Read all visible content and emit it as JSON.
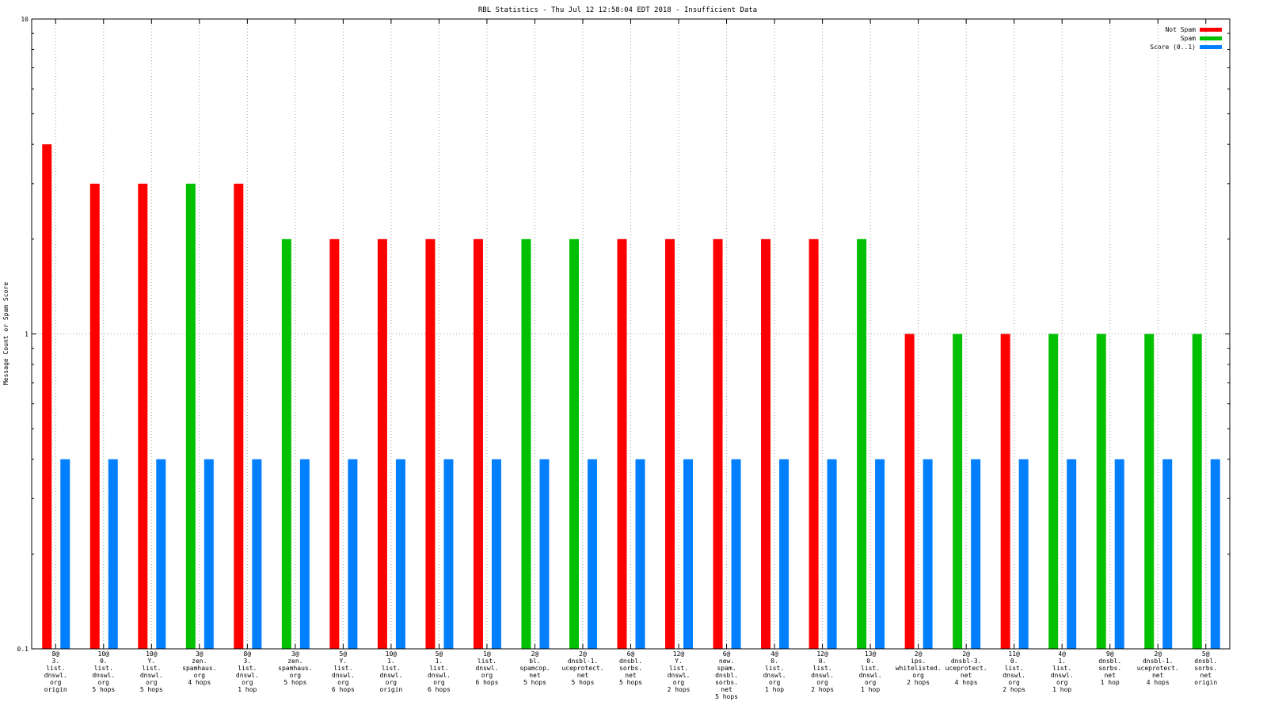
{
  "chart_data": {
    "type": "bar",
    "title": "RBL Statistics - Thu Jul 12 12:58:04 EDT 2018 - Insufficient Data",
    "xlabel": "",
    "ylabel": "Message Count or Spam Score",
    "yscale": "log",
    "ylim": [
      0.1,
      10
    ],
    "yticks": [
      "0.1",
      "1",
      "10"
    ],
    "grid": true,
    "legend_position": "top-right",
    "categories": [
      "8@\n3.\nlist.\ndnswl.\norg\norigin",
      "10@\n0.\nlist.\ndnswl.\norg\n5 hops",
      "10@\nY.\nlist.\ndnswl.\norg\n5 hops",
      "3@\nzen.\nspamhaus.\norg\n4 hops",
      "8@\n3.\nlist.\ndnswl.\norg\n1 hop",
      "3@\nzen.\nspamhaus.\norg\n5 hops",
      "5@\nY.\nlist.\ndnswl.\norg\n6 hops",
      "10@\n1.\nlist.\ndnswl.\norg\norigin",
      "5@\n1.\nlist.\ndnswl.\norg\n6 hops",
      "1@\nlist.\ndnswl.\norg\n6 hops",
      "2@\nbl.\nspamcop.\nnet\n5 hops",
      "2@\ndnsbl-1.\nuceprotect.\nnet\n5 hops",
      "6@\ndnsbl.\nsorbs.\nnet\n5 hops",
      "12@\nY.\nlist.\ndnswl.\norg\n2 hops",
      "6@\nnew.\nspam.\ndnsbl.\nsorbs.\nnet\n5 hops",
      "4@\n0.\nlist.\ndnswl.\norg\n1 hop",
      "12@\n0.\nlist.\ndnswl.\norg\n2 hops",
      "13@\n0.\nlist.\ndnswl.\norg\n1 hop",
      "2@\nips.\nwhitelisted.\norg\n2 hops",
      "2@\ndnsbl-3.\nuceprotect.\nnet\n4 hops",
      "11@\n0.\nlist.\ndnswl.\norg\n2 hops",
      "4@\n1.\nlist.\ndnswl.\norg\n1 hop",
      "9@\ndnsbl.\nsorbs.\nnet\n1 hop",
      "2@\ndnsbl-1.\nuceprotect.\nnet\n4 hops",
      "5@\ndnsbl.\nsorbs.\nnet\norigin"
    ],
    "series": [
      {
        "name": "Not Spam",
        "color": "#ff0000",
        "values": [
          4,
          3,
          3,
          null,
          3,
          null,
          2,
          2,
          2,
          2,
          null,
          null,
          2,
          2,
          2,
          2,
          2,
          null,
          1,
          null,
          1,
          null,
          null,
          null,
          null
        ]
      },
      {
        "name": "Spam",
        "color": "#00c000",
        "values": [
          null,
          null,
          null,
          3,
          null,
          2,
          null,
          null,
          null,
          null,
          2,
          2,
          null,
          null,
          null,
          null,
          null,
          2,
          null,
          1,
          null,
          1,
          1,
          1,
          1
        ]
      },
      {
        "name": "Score (0..1)",
        "color": "#0080ff",
        "values": [
          0.4,
          0.4,
          0.4,
          0.4,
          0.4,
          0.4,
          0.4,
          0.4,
          0.4,
          0.4,
          0.4,
          0.4,
          0.4,
          0.4,
          0.4,
          0.4,
          0.4,
          0.4,
          0.4,
          0.4,
          0.4,
          0.4,
          0.4,
          0.4,
          0.4
        ]
      }
    ]
  }
}
